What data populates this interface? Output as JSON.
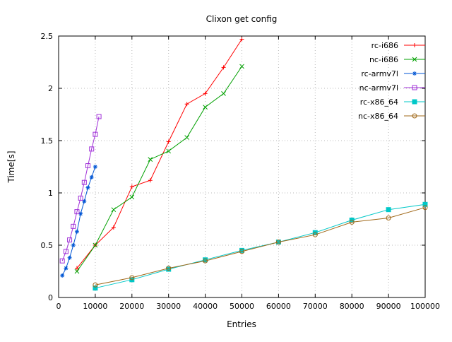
{
  "chart_data": {
    "type": "line",
    "title": "Clixon get config",
    "xlabel": "Entries",
    "ylabel": "Time[s]",
    "xlim": [
      0,
      100000
    ],
    "ylim": [
      0,
      2.5
    ],
    "xticks": [
      0,
      10000,
      20000,
      30000,
      40000,
      50000,
      60000,
      70000,
      80000,
      90000,
      100000
    ],
    "yticks": [
      0,
      0.5,
      1,
      1.5,
      2,
      2.5
    ],
    "grid": true,
    "legend_position": "top-right-inside",
    "series": [
      {
        "name": "rc-i686",
        "color": "#ff0000",
        "marker": "plus",
        "x": [
          5000,
          10000,
          15000,
          20000,
          25000,
          30000,
          35000,
          40000,
          45000,
          50000
        ],
        "y": [
          0.28,
          0.5,
          0.67,
          1.06,
          1.12,
          1.49,
          1.85,
          1.95,
          2.2,
          2.47
        ]
      },
      {
        "name": "nc-i686",
        "color": "#00a000",
        "marker": "cross",
        "x": [
          5000,
          10000,
          15000,
          20000,
          25000,
          30000,
          35000,
          40000,
          45000,
          50000
        ],
        "y": [
          0.25,
          0.5,
          0.84,
          0.96,
          1.32,
          1.4,
          1.53,
          1.82,
          1.95,
          2.21
        ]
      },
      {
        "name": "rc-armv7l",
        "color": "#0055d4",
        "marker": "asterisk",
        "x": [
          1000,
          2000,
          3000,
          4000,
          5000,
          6000,
          7000,
          8000,
          9000,
          10000
        ],
        "y": [
          0.21,
          0.28,
          0.38,
          0.5,
          0.63,
          0.8,
          0.92,
          1.05,
          1.15,
          1.25
        ]
      },
      {
        "name": "nc-armv7l",
        "color": "#a030d8",
        "marker": "square-open",
        "x": [
          1000,
          2000,
          3000,
          4000,
          5000,
          6000,
          7000,
          8000,
          9000,
          10000,
          11000
        ],
        "y": [
          0.35,
          0.44,
          0.55,
          0.68,
          0.82,
          0.95,
          1.1,
          1.26,
          1.42,
          1.56,
          1.73
        ]
      },
      {
        "name": "rc-x86_64",
        "color": "#00c8c8",
        "marker": "square-filled",
        "x": [
          10000,
          20000,
          30000,
          40000,
          50000,
          60000,
          70000,
          80000,
          90000,
          100000
        ],
        "y": [
          0.09,
          0.17,
          0.27,
          0.36,
          0.45,
          0.53,
          0.62,
          0.74,
          0.84,
          0.89
        ]
      },
      {
        "name": "nc-x86_64",
        "color": "#a06818",
        "marker": "circle-open",
        "x": [
          10000,
          20000,
          30000,
          40000,
          50000,
          60000,
          70000,
          80000,
          90000,
          100000
        ],
        "y": [
          0.12,
          0.19,
          0.28,
          0.35,
          0.44,
          0.53,
          0.6,
          0.72,
          0.76,
          0.86
        ]
      }
    ]
  }
}
